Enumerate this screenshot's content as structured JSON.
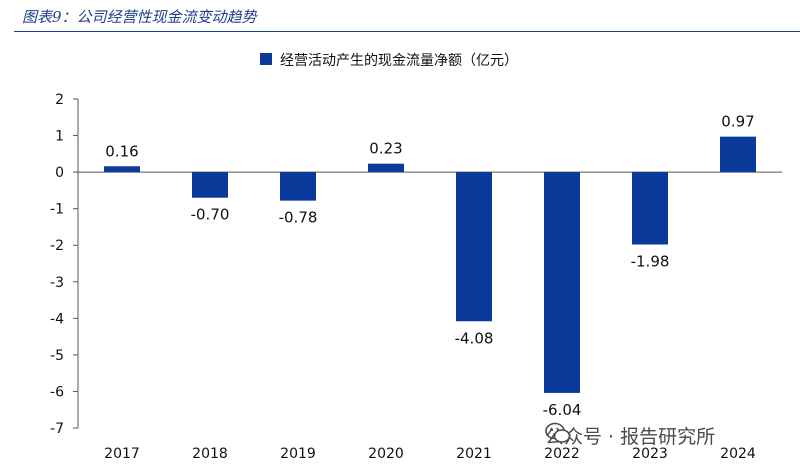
{
  "caption": "图表9：公司经营性现金流变动趋势",
  "watermark": "公众号 · 报告研究所",
  "chart_data": {
    "type": "bar",
    "title": "",
    "legend": "经营活动产生的现金流量净额（亿元）",
    "legend_position": "top-center",
    "categories": [
      "2017",
      "2018",
      "2019",
      "2020",
      "2021",
      "2022",
      "2023",
      "2024"
    ],
    "values": [
      0.16,
      -0.7,
      -0.78,
      0.23,
      -4.08,
      -6.04,
      -1.98,
      0.97
    ],
    "value_labels": [
      "0.16",
      "-0.70",
      "-0.78",
      "0.23",
      "-4.08",
      "-6.04",
      "-1.98",
      "0.97"
    ],
    "ylim": [
      -7,
      2
    ],
    "yticks": [
      2,
      1,
      0,
      -1,
      -2,
      -3,
      -4,
      -5,
      -6,
      -7
    ],
    "xlabel": "",
    "ylabel": "",
    "grid": false,
    "bar_color": "#0a3a9a"
  }
}
